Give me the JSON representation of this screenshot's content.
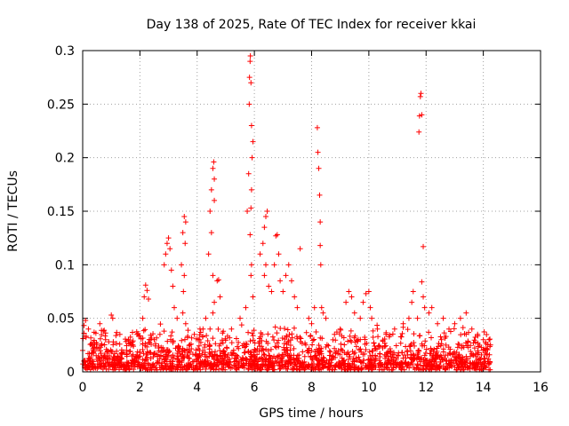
{
  "chart_data": {
    "type": "scatter",
    "title": "Day 138 of 2025, Rate Of TEC Index for receiver kkai",
    "xlabel": "GPS time / hours",
    "ylabel": "ROTI / TECUs",
    "xlim": [
      0,
      16
    ],
    "ylim": [
      0,
      0.3
    ],
    "xticks": [
      0,
      2,
      4,
      6,
      8,
      10,
      12,
      14,
      16
    ],
    "xtick_labels": [
      "0",
      "2",
      "4",
      "6",
      "8",
      "10",
      "12",
      "14",
      "16"
    ],
    "yticks": [
      0,
      0.05,
      0.1,
      0.15,
      0.2,
      0.25,
      0.3
    ],
    "ytick_labels": [
      "0",
      "0.05",
      "0.1",
      "0.15",
      "0.2",
      "0.25",
      "0.3"
    ],
    "grid": true,
    "marker": "+",
    "color": "#ff0000",
    "series": [
      {
        "name": "ROTI",
        "points": [
          [
            0.0,
            0.02
          ],
          [
            0.05,
            0.036
          ],
          [
            0.1,
            0.048
          ],
          [
            0.2,
            0.04
          ],
          [
            0.4,
            0.037
          ],
          [
            0.6,
            0.045
          ],
          [
            0.8,
            0.03
          ],
          [
            1.0,
            0.053
          ],
          [
            1.05,
            0.05
          ],
          [
            1.3,
            0.035
          ],
          [
            1.6,
            0.03
          ],
          [
            1.9,
            0.035
          ],
          [
            2.1,
            0.05
          ],
          [
            2.15,
            0.07
          ],
          [
            2.2,
            0.081
          ],
          [
            2.25,
            0.076
          ],
          [
            2.3,
            0.068
          ],
          [
            2.5,
            0.03
          ],
          [
            2.7,
            0.035
          ],
          [
            2.85,
            0.1
          ],
          [
            2.9,
            0.11
          ],
          [
            2.95,
            0.12
          ],
          [
            3.0,
            0.125
          ],
          [
            3.05,
            0.115
          ],
          [
            3.1,
            0.095
          ],
          [
            3.15,
            0.08
          ],
          [
            3.2,
            0.06
          ],
          [
            3.3,
            0.05
          ],
          [
            3.45,
            0.1
          ],
          [
            3.5,
            0.13
          ],
          [
            3.55,
            0.145
          ],
          [
            3.6,
            0.14
          ],
          [
            3.58,
            0.12
          ],
          [
            3.55,
            0.09
          ],
          [
            3.52,
            0.075
          ],
          [
            3.5,
            0.055
          ],
          [
            3.6,
            0.045
          ],
          [
            3.9,
            0.035
          ],
          [
            4.1,
            0.04
          ],
          [
            4.3,
            0.05
          ],
          [
            4.4,
            0.11
          ],
          [
            4.45,
            0.15
          ],
          [
            4.5,
            0.17
          ],
          [
            4.55,
            0.19
          ],
          [
            4.58,
            0.196
          ],
          [
            4.6,
            0.18
          ],
          [
            4.6,
            0.16
          ],
          [
            4.5,
            0.13
          ],
          [
            4.55,
            0.09
          ],
          [
            4.6,
            0.065
          ],
          [
            4.55,
            0.055
          ],
          [
            4.7,
            0.085
          ],
          [
            4.75,
            0.086
          ],
          [
            4.8,
            0.07
          ],
          [
            4.45,
            0.04
          ],
          [
            5.2,
            0.04
          ],
          [
            5.5,
            0.05
          ],
          [
            5.7,
            0.06
          ],
          [
            5.75,
            0.15
          ],
          [
            5.8,
            0.185
          ],
          [
            5.82,
            0.25
          ],
          [
            5.83,
            0.275
          ],
          [
            5.85,
            0.29
          ],
          [
            5.86,
            0.295
          ],
          [
            5.88,
            0.27
          ],
          [
            5.9,
            0.23
          ],
          [
            5.95,
            0.215
          ],
          [
            5.92,
            0.2
          ],
          [
            5.9,
            0.17
          ],
          [
            5.88,
            0.153
          ],
          [
            5.85,
            0.128
          ],
          [
            5.9,
            0.1
          ],
          [
            5.88,
            0.09
          ],
          [
            5.95,
            0.07
          ],
          [
            6.2,
            0.11
          ],
          [
            6.3,
            0.12
          ],
          [
            6.35,
            0.135
          ],
          [
            6.4,
            0.145
          ],
          [
            6.45,
            0.15
          ],
          [
            6.4,
            0.1
          ],
          [
            6.35,
            0.09
          ],
          [
            6.5,
            0.08
          ],
          [
            6.6,
            0.075
          ],
          [
            6.7,
            0.1
          ],
          [
            6.75,
            0.127
          ],
          [
            6.8,
            0.128
          ],
          [
            6.85,
            0.11
          ],
          [
            6.9,
            0.085
          ],
          [
            7.0,
            0.075
          ],
          [
            7.1,
            0.09
          ],
          [
            7.2,
            0.1
          ],
          [
            7.3,
            0.085
          ],
          [
            7.4,
            0.07
          ],
          [
            7.5,
            0.06
          ],
          [
            7.6,
            0.115
          ],
          [
            7.9,
            0.05
          ],
          [
            8.0,
            0.045
          ],
          [
            8.1,
            0.06
          ],
          [
            8.2,
            0.228
          ],
          [
            8.22,
            0.205
          ],
          [
            8.25,
            0.19
          ],
          [
            8.28,
            0.165
          ],
          [
            8.3,
            0.14
          ],
          [
            8.3,
            0.118
          ],
          [
            8.32,
            0.1
          ],
          [
            8.35,
            0.06
          ],
          [
            8.4,
            0.055
          ],
          [
            8.5,
            0.05
          ],
          [
            8.8,
            0.035
          ],
          [
            9.0,
            0.04
          ],
          [
            9.2,
            0.065
          ],
          [
            9.3,
            0.075
          ],
          [
            9.4,
            0.07
          ],
          [
            9.5,
            0.055
          ],
          [
            9.7,
            0.05
          ],
          [
            9.8,
            0.065
          ],
          [
            9.9,
            0.073
          ],
          [
            10.0,
            0.075
          ],
          [
            10.05,
            0.06
          ],
          [
            10.1,
            0.05
          ],
          [
            10.3,
            0.04
          ],
          [
            10.6,
            0.035
          ],
          [
            10.9,
            0.04
          ],
          [
            11.2,
            0.045
          ],
          [
            11.4,
            0.05
          ],
          [
            11.5,
            0.065
          ],
          [
            11.55,
            0.075
          ],
          [
            11.7,
            0.05
          ],
          [
            11.75,
            0.224
          ],
          [
            11.77,
            0.239
          ],
          [
            11.8,
            0.257
          ],
          [
            11.82,
            0.26
          ],
          [
            11.85,
            0.24
          ],
          [
            11.9,
            0.117
          ],
          [
            11.85,
            0.084
          ],
          [
            11.9,
            0.07
          ],
          [
            11.95,
            0.06
          ],
          [
            12.1,
            0.055
          ],
          [
            12.2,
            0.06
          ],
          [
            12.4,
            0.045
          ],
          [
            12.6,
            0.05
          ],
          [
            12.8,
            0.04
          ],
          [
            13.0,
            0.045
          ],
          [
            13.2,
            0.05
          ],
          [
            13.4,
            0.055
          ],
          [
            13.6,
            0.04
          ],
          [
            13.8,
            0.035
          ],
          [
            14.0,
            0.03
          ],
          [
            14.2,
            0.03
          ]
        ]
      }
    ],
    "dense_band": {
      "description": "Continuous dense band of ROTI values from 0 to 14.25 hours",
      "x_range": [
        0,
        14.25
      ],
      "y_range": [
        0.003,
        0.045
      ],
      "median": 0.015
    }
  }
}
